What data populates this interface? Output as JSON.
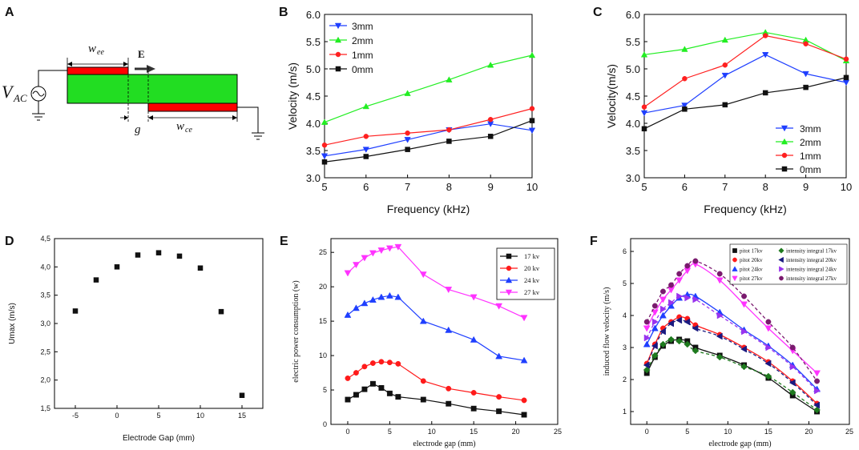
{
  "panel_letters": {
    "A": "A",
    "B": "B",
    "C": "C",
    "D": "D",
    "E": "E",
    "F": "F"
  },
  "schematic": {
    "source_label": "V",
    "source_sub": "AC",
    "wee_label": "w",
    "wee_sub": "ee",
    "wce_label": "w",
    "wce_sub": "ce",
    "gap_label": "g",
    "field_label": "E",
    "colors": {
      "electrode": "#ff0000",
      "dielectric": "#22dd22"
    }
  },
  "chart_data": [
    {
      "id": "B",
      "type": "line",
      "xlabel": "Frequency (kHz)",
      "ylabel": "Velocity (m/s)",
      "xlim": [
        5,
        10
      ],
      "ylim": [
        3.0,
        6.0
      ],
      "xticks": [
        "5",
        "6",
        "7",
        "8",
        "9",
        "10"
      ],
      "yticks": [
        "3.0",
        "3.5",
        "4.0",
        "4.5",
        "5.0",
        "5.5",
        "6.0"
      ],
      "legend": "top-left",
      "x": [
        5,
        6,
        7,
        8,
        9,
        10
      ],
      "series": [
        {
          "name": "3mm",
          "color": "#1f3fff",
          "marker": "tri-down",
          "values": [
            3.4,
            3.52,
            3.7,
            3.88,
            3.99,
            3.87
          ]
        },
        {
          "name": "2mm",
          "color": "#22ee22",
          "marker": "tri-up",
          "values": [
            4.02,
            4.31,
            4.55,
            4.8,
            5.07,
            5.25
          ]
        },
        {
          "name": "1mm",
          "color": "#ff2020",
          "marker": "circle",
          "values": [
            3.6,
            3.76,
            3.82,
            3.88,
            4.07,
            4.27
          ]
        },
        {
          "name": "0mm",
          "color": "#111111",
          "marker": "square",
          "values": [
            3.29,
            3.39,
            3.52,
            3.67,
            3.76,
            4.05
          ]
        }
      ]
    },
    {
      "id": "C",
      "type": "line",
      "xlabel": "Frequency (kHz)",
      "ylabel": "Velocity(m/s)",
      "xlim": [
        5,
        10
      ],
      "ylim": [
        3.0,
        6.0
      ],
      "xticks": [
        "5",
        "6",
        "7",
        "8",
        "9",
        "10"
      ],
      "yticks": [
        "3.0",
        "3.5",
        "4.0",
        "4.5",
        "5.0",
        "5.5",
        "6.0"
      ],
      "legend": "bottom-right",
      "x": [
        5,
        6,
        7,
        8,
        9,
        10
      ],
      "series": [
        {
          "name": "3mm",
          "color": "#1f3fff",
          "marker": "tri-down",
          "values": [
            4.19,
            4.33,
            4.88,
            5.26,
            4.91,
            4.75
          ]
        },
        {
          "name": "2mm",
          "color": "#22ee22",
          "marker": "tri-up",
          "values": [
            5.26,
            5.36,
            5.53,
            5.67,
            5.53,
            5.15
          ]
        },
        {
          "name": "1mm",
          "color": "#ff2020",
          "marker": "circle",
          "values": [
            4.3,
            4.82,
            5.07,
            5.61,
            5.46,
            5.18
          ]
        },
        {
          "name": "0mm",
          "color": "#111111",
          "marker": "square",
          "values": [
            3.9,
            4.26,
            4.34,
            4.56,
            4.66,
            4.84
          ]
        }
      ]
    },
    {
      "id": "D",
      "type": "scatter",
      "xlabel": "Electrode Gap (mm)",
      "ylabel": "Umax (m/s)",
      "xlim": [
        -7.5,
        17.5
      ],
      "ylim": [
        1.5,
        4.5
      ],
      "xticks": [
        "-5",
        "0",
        "5",
        "10",
        "15"
      ],
      "xtick_values": [
        -5,
        0,
        5,
        10,
        15
      ],
      "yticks": [
        "1,5",
        "2,0",
        "2,5",
        "3,0",
        "3,5",
        "4,0",
        "4,5"
      ],
      "series": [
        {
          "name": "Umax",
          "color": "#111111",
          "marker": "square",
          "x": [
            -5,
            -2.5,
            0,
            2.5,
            5,
            7.5,
            10,
            12.5,
            15
          ],
          "values": [
            3.22,
            3.77,
            4.0,
            4.21,
            4.25,
            4.19,
            3.98,
            3.21,
            1.73
          ]
        }
      ]
    },
    {
      "id": "E",
      "type": "line",
      "xlabel": "electrode gap (mm)",
      "ylabel": "electric power consumption  (w)",
      "xlim": [
        -2,
        25
      ],
      "ylim": [
        0,
        27
      ],
      "xticks": [
        "0",
        "5",
        "10",
        "15",
        "20",
        "25"
      ],
      "xtick_values": [
        0,
        5,
        10,
        15,
        20,
        25
      ],
      "yticks": [
        "0",
        "5",
        "10",
        "15",
        "20",
        "25"
      ],
      "ytick_values": [
        0,
        5,
        10,
        15,
        20,
        25
      ],
      "legend": "top-right",
      "x": [
        0,
        1,
        2,
        3,
        4,
        5,
        6,
        9,
        12,
        15,
        18,
        21
      ],
      "series": [
        {
          "name": "17 kv",
          "color": "#111111",
          "marker": "square",
          "values": [
            3.6,
            4.3,
            5.1,
            5.9,
            5.3,
            4.5,
            4.0,
            3.6,
            3.0,
            2.3,
            1.9,
            1.4
          ]
        },
        {
          "name": "20 kv",
          "color": "#ff1a1a",
          "marker": "circle",
          "values": [
            6.7,
            7.5,
            8.4,
            8.9,
            9.1,
            9.0,
            8.8,
            6.3,
            5.2,
            4.6,
            4.0,
            3.5
          ]
        },
        {
          "name": "24 kv",
          "color": "#1f3fff",
          "marker": "tri-up",
          "values": [
            15.9,
            16.9,
            17.6,
            18.1,
            18.5,
            18.7,
            18.5,
            15.0,
            13.7,
            12.3,
            9.9,
            9.3
          ]
        },
        {
          "name": "27 kv",
          "color": "#ff33ff",
          "marker": "tri-down",
          "values": [
            22.0,
            23.2,
            24.2,
            24.9,
            25.3,
            25.6,
            25.8,
            21.8,
            19.6,
            18.5,
            17.2,
            15.5
          ]
        }
      ]
    },
    {
      "id": "F",
      "type": "scatter",
      "xlabel": "electrode gap (mm)",
      "ylabel": "induced flow velocity (m/s)",
      "xlim": [
        -2,
        25
      ],
      "ylim": [
        0.6,
        6.4
      ],
      "xticks": [
        "0",
        "5",
        "10",
        "15",
        "20",
        "25"
      ],
      "xtick_values": [
        0,
        5,
        10,
        15,
        20,
        25
      ],
      "yticks": [
        "1",
        "2",
        "3",
        "4",
        "5",
        "6"
      ],
      "ytick_values": [
        1,
        2,
        3,
        4,
        5,
        6
      ],
      "legend": "top-right",
      "x": [
        0,
        1,
        2,
        3,
        4,
        5,
        6,
        9,
        12,
        15,
        18,
        21
      ],
      "series": [
        {
          "name": "pitot 17kv",
          "color": "#111111",
          "marker": "square",
          "line": "solid",
          "values": [
            2.2,
            2.7,
            3.05,
            3.2,
            3.25,
            3.2,
            3.0,
            2.75,
            2.45,
            2.05,
            1.5,
            1.0
          ]
        },
        {
          "name": "intensity integral 17kv",
          "color": "#1e7a1e",
          "marker": "diamond",
          "line": "dashed",
          "values": [
            2.3,
            2.75,
            3.1,
            3.25,
            3.2,
            3.1,
            2.9,
            2.7,
            2.4,
            2.1,
            1.6,
            1.05
          ]
        },
        {
          "name": "pitot 20kv",
          "color": "#ff1a1a",
          "marker": "circle",
          "line": "solid",
          "values": [
            2.5,
            3.1,
            3.6,
            3.8,
            3.95,
            3.9,
            3.7,
            3.4,
            3.0,
            2.55,
            1.95,
            1.25
          ]
        },
        {
          "name": "intensity integral 20kv",
          "color": "#1a1a80",
          "marker": "tri-left",
          "line": "dashed",
          "values": [
            2.45,
            3.05,
            3.5,
            3.75,
            3.85,
            3.8,
            3.6,
            3.35,
            2.95,
            2.5,
            1.9,
            1.2
          ]
        },
        {
          "name": "pitot 24kv",
          "color": "#1f3fff",
          "marker": "tri-up",
          "line": "solid",
          "values": [
            3.1,
            3.6,
            4.0,
            4.3,
            4.55,
            4.65,
            4.6,
            4.1,
            3.55,
            3.05,
            2.45,
            1.7
          ]
        },
        {
          "name": "intensity integral 24kv",
          "color": "#9933ee",
          "marker": "tri-right",
          "line": "dashed",
          "values": [
            3.3,
            3.8,
            4.2,
            4.4,
            4.6,
            4.55,
            4.5,
            4.0,
            3.5,
            3.0,
            2.4,
            1.65
          ]
        },
        {
          "name": "pitot 27kv",
          "color": "#ff33ff",
          "marker": "tri-down",
          "line": "solid",
          "values": [
            3.6,
            4.1,
            4.5,
            4.8,
            5.1,
            5.4,
            5.6,
            5.1,
            4.35,
            3.6,
            2.9,
            2.2
          ]
        },
        {
          "name": "intensity integral 27kv",
          "color": "#7a1a6e",
          "marker": "circle",
          "line": "dashed",
          "values": [
            3.8,
            4.3,
            4.75,
            4.95,
            5.3,
            5.55,
            5.7,
            5.3,
            4.6,
            3.8,
            3.0,
            1.95
          ]
        }
      ]
    }
  ]
}
